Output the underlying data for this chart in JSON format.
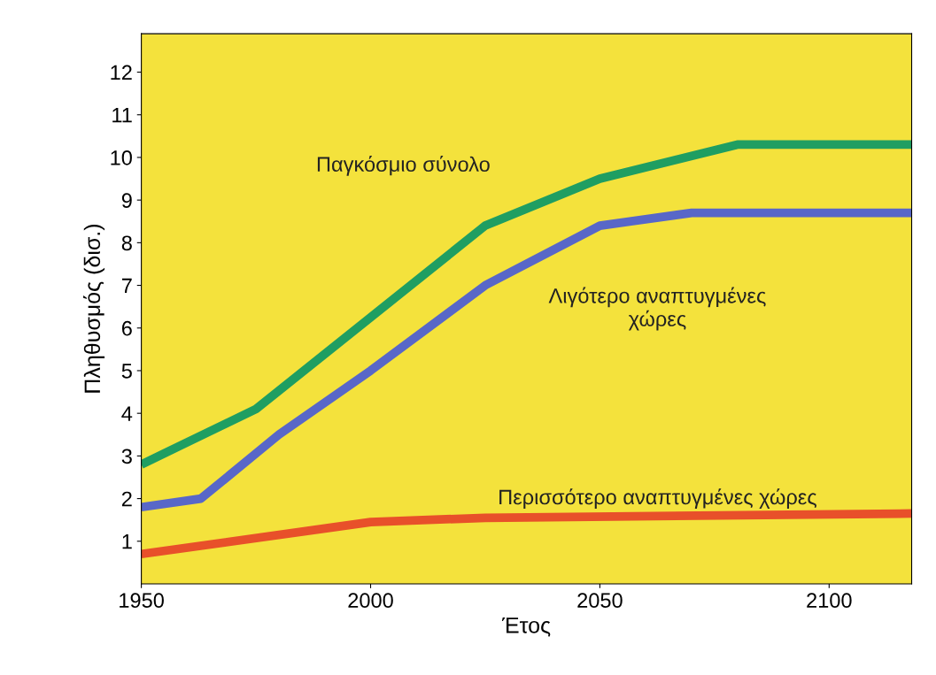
{
  "chart_data": {
    "type": "line",
    "xlabel": "Έτος",
    "ylabel": "Πληθυσμός (δισ.)",
    "xlim": [
      1950,
      2118
    ],
    "xticks": [
      1950,
      2000,
      2050,
      2100
    ],
    "ylim": [
      0,
      12.9
    ],
    "yticks": [
      1,
      2,
      3,
      4,
      5,
      6,
      7,
      8,
      9,
      10,
      11,
      12
    ],
    "grid": false,
    "legend": false,
    "marker": "none",
    "line_style": "solid",
    "series": [
      {
        "name": "Παγκόσμιο σύνολο",
        "color": "#1f9e62",
        "x": [
          1950,
          1975,
          2025,
          2050,
          2080,
          2118
        ],
        "values": [
          2.8,
          4.1,
          8.4,
          9.5,
          10.3,
          10.3
        ]
      },
      {
        "name": "Λιγότερο αναπτυγμένες\nχώρες",
        "color": "#5867c8",
        "x": [
          1950,
          1963,
          1980,
          2000,
          2025,
          2050,
          2070,
          2118
        ],
        "values": [
          1.8,
          2.0,
          3.5,
          5.0,
          7.0,
          8.4,
          8.7,
          8.7
        ]
      },
      {
        "name": "Περισσότερο αναπτυγμένες χώρες",
        "color": "#e8502a",
        "x": [
          1950,
          1990,
          2000,
          2025,
          2118
        ],
        "values": [
          0.7,
          1.3,
          1.45,
          1.55,
          1.65
        ]
      }
    ]
  }
}
